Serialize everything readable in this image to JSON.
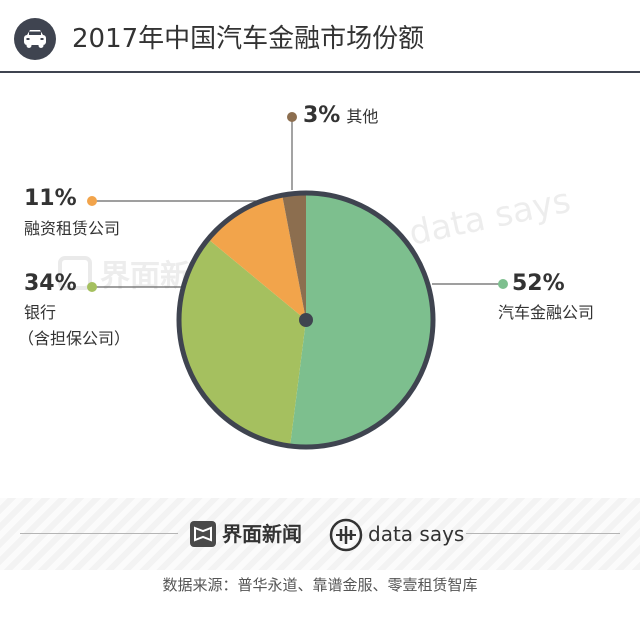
{
  "title": "2017年中国汽车金融市场份额",
  "colors": {
    "header_dark": "#3f4450",
    "auto_finance": "#7dbf8e",
    "bank": "#a5c05f",
    "leasing": "#f2a44b",
    "other": "#8c6e4f",
    "pie_border": "#3f4450",
    "leader": "#666666"
  },
  "header_icon": "car-icon",
  "chart_data": {
    "type": "pie",
    "title": "2017年中国汽车金融市场份额",
    "slices": [
      {
        "label": "汽车金融公司",
        "value": 52,
        "pct_text": "52%",
        "color": "#7dbf8e"
      },
      {
        "label": "银行\n（含担保公司）",
        "value": 34,
        "pct_text": "34%",
        "color": "#a5c05f"
      },
      {
        "label": "融资租赁公司",
        "value": 11,
        "pct_text": "11%",
        "color": "#f2a44b"
      },
      {
        "label": "其他",
        "value": 3,
        "pct_text": "3%",
        "color": "#8c6e4f"
      }
    ]
  },
  "labels": {
    "auto_pct": "52%",
    "auto_name": "汽车金融公司",
    "bank_pct": "34%",
    "bank_name_1": "银行",
    "bank_name_2": "（含担保公司）",
    "lease_pct": "11%",
    "lease_name": "融资租赁公司",
    "other_pct": "3%",
    "other_name": "其他"
  },
  "watermark": {
    "cn": "界面新闻",
    "en": "data says"
  },
  "footer": {
    "brand_cn": "界面新闻",
    "brand_en": "data says",
    "source": "数据来源：普华永道、靠谱金服、零壹租赁智库"
  }
}
